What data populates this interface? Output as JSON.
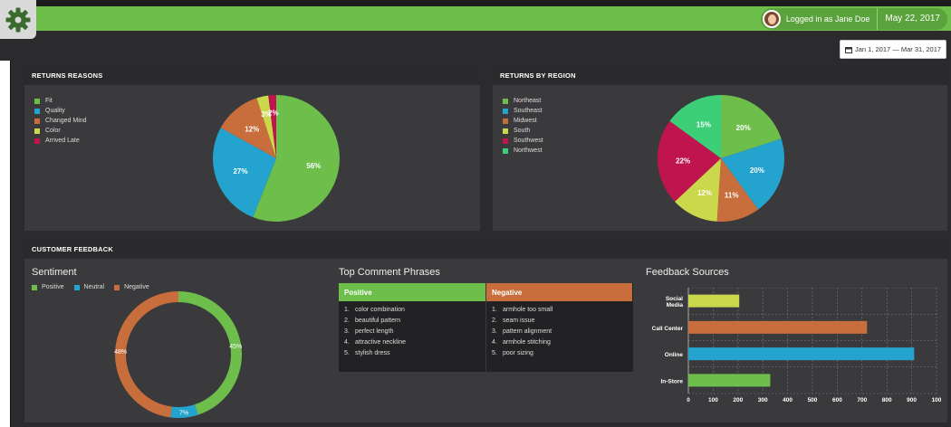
{
  "header": {
    "logged_in_text": "Logged in as Jane Doe",
    "date": "May 22, 2017",
    "date_range": "Jan 1, 2017 — Mar 31, 2017"
  },
  "panels": {
    "returns_reasons": "RETURNS REASONS",
    "returns_by_region": "RETURNS BY REGION",
    "customer_feedback": "CUSTOMER FEEDBACK"
  },
  "colors": {
    "green": "#6dbe4b",
    "blue": "#23a3cd",
    "orange": "#c86d3c",
    "yellow": "#cbd84b",
    "crimson": "#c0144f",
    "teal": "#3ccf78"
  },
  "feedback": {
    "sentiment_title": "Sentiment",
    "phrases_title": "Top Comment Phrases",
    "sources_title": "Feedback Sources",
    "positive_header": "Positive",
    "negative_header": "Negative",
    "positive_phrases": [
      "color combination",
      "beautiful pattern",
      "perfect length",
      "attractive neckline",
      "stylish dress"
    ],
    "negative_phrases": [
      "armhole too small",
      "seam issue",
      "pattern alignment",
      "armhole stitching",
      "poor sizing"
    ]
  },
  "chart_data": [
    {
      "type": "pie",
      "categories": [
        "Fit",
        "Quality",
        "Changed Mind",
        "Color",
        "Arrived Late"
      ],
      "values": [
        56,
        27,
        12,
        3,
        2
      ],
      "labels": [
        "56%",
        "27%",
        "12%",
        "3%",
        "2%"
      ],
      "colors": [
        "#6dbe4b",
        "#23a3cd",
        "#c86d3c",
        "#cbd84b",
        "#c0144f"
      ],
      "legend": "top-left"
    },
    {
      "type": "pie",
      "categories": [
        "Northeast",
        "Southeast",
        "Midwest",
        "South",
        "Southwest",
        "Northwest"
      ],
      "values": [
        20,
        20,
        11,
        12,
        22,
        15
      ],
      "labels": [
        "20%",
        "20%",
        "11%",
        "12%",
        "22%",
        "15%"
      ],
      "colors": [
        "#6dbe4b",
        "#23a3cd",
        "#c86d3c",
        "#cbd84b",
        "#c0144f",
        "#3ccf78"
      ],
      "legend": "top-left"
    },
    {
      "type": "pie",
      "variant": "donut",
      "categories": [
        "Positive",
        "Neutral",
        "Negative"
      ],
      "values": [
        45,
        7,
        48
      ],
      "labels": [
        "45%",
        "7%",
        "48%"
      ],
      "colors": [
        "#6dbe4b",
        "#23a3cd",
        "#c86d3c"
      ],
      "legend": "top-left"
    },
    {
      "type": "bar",
      "orientation": "horizontal",
      "categories": [
        "Social Media",
        "Call Center",
        "Online",
        "In-Store"
      ],
      "category_lines": [
        [
          "Social",
          "Media"
        ],
        [
          "Call Center"
        ],
        [
          "Online"
        ],
        [
          "In-Store"
        ]
      ],
      "values": [
        205,
        720,
        910,
        330
      ],
      "colors": [
        "#cbd84b",
        "#c86d3c",
        "#23a3cd",
        "#6dbe4b"
      ],
      "ticks": [
        "0",
        "100",
        "200",
        "300",
        "400",
        "500",
        "600",
        "700",
        "800",
        "900",
        "100"
      ],
      "xlim": [
        0,
        1000
      ],
      "grid": true
    }
  ]
}
